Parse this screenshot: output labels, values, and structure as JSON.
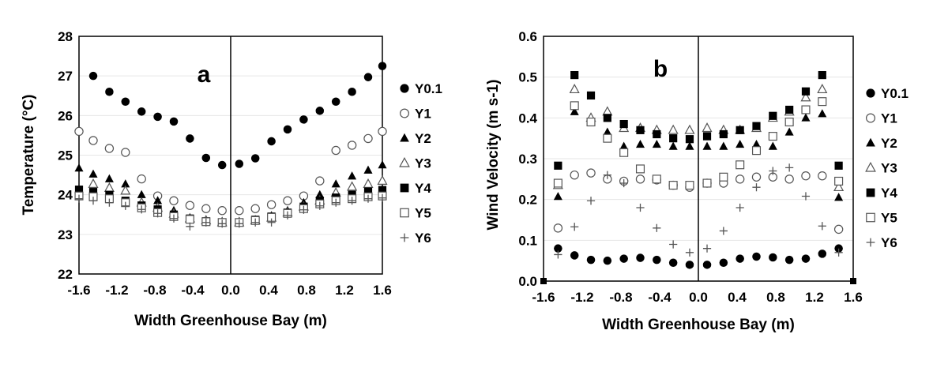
{
  "chart_data": [
    {
      "id": "a",
      "type": "scatter",
      "panel_label": "a",
      "xlabel": "Width Greenhouse Bay (m)",
      "ylabel": "Temperature (°C)",
      "xlim": [
        -1.6,
        1.6
      ],
      "ylim": [
        22,
        28
      ],
      "x_ticks": [
        -1.6,
        -1.2,
        -0.8,
        -0.4,
        0.0,
        0.4,
        0.8,
        1.2,
        1.6
      ],
      "x_tick_labels": [
        "-1.6",
        "-1.2",
        "-0.8",
        "-0.4",
        "0.0",
        "0.4",
        "0.8",
        "1.2",
        "1.6"
      ],
      "y_ticks": [
        22,
        23,
        24,
        25,
        26,
        27,
        28
      ],
      "y_tick_labels": [
        "22",
        "23",
        "24",
        "25",
        "26",
        "27",
        "28"
      ],
      "legend_position": "right",
      "series": [
        {
          "name": "Y0.1",
          "marker": "filled-circle",
          "x": [
            -1.45,
            -1.28,
            -1.11,
            -0.94,
            -0.77,
            -0.6,
            -0.43,
            -0.26,
            -0.09,
            0.09,
            0.26,
            0.43,
            0.6,
            0.77,
            0.94,
            1.11,
            1.28,
            1.45,
            1.6
          ],
          "y": [
            27.0,
            26.6,
            26.35,
            26.1,
            25.97,
            25.85,
            25.42,
            24.93,
            24.75,
            24.78,
            24.92,
            25.35,
            25.65,
            25.9,
            26.12,
            26.35,
            26.6,
            26.97,
            27.25
          ]
        },
        {
          "name": "Y1",
          "marker": "open-circle",
          "x": [
            -1.6,
            -1.45,
            -1.28,
            -1.11,
            -0.94,
            -0.77,
            -0.6,
            -0.43,
            -0.26,
            -0.09,
            0.09,
            0.26,
            0.43,
            0.6,
            0.77,
            0.94,
            1.11,
            1.28,
            1.45,
            1.6
          ],
          "y": [
            25.6,
            25.37,
            25.17,
            25.07,
            24.4,
            23.97,
            23.85,
            23.73,
            23.65,
            23.6,
            23.6,
            23.65,
            23.75,
            23.85,
            23.97,
            24.35,
            25.12,
            25.25,
            25.42,
            25.6
          ]
        },
        {
          "name": "Y2",
          "marker": "filled-triangle",
          "x": [
            -1.6,
            -1.45,
            -1.28,
            -1.11,
            -0.94,
            -0.77,
            -0.6,
            -0.43,
            -0.26,
            -0.09,
            0.09,
            0.26,
            0.43,
            0.6,
            0.77,
            0.94,
            1.11,
            1.28,
            1.45,
            1.6
          ],
          "y": [
            24.67,
            24.52,
            24.4,
            24.27,
            24.0,
            23.85,
            23.6,
            23.4,
            23.33,
            23.33,
            23.33,
            23.37,
            23.47,
            23.6,
            23.8,
            24.0,
            24.27,
            24.47,
            24.62,
            24.75
          ]
        },
        {
          "name": "Y3",
          "marker": "open-triangle",
          "x": [
            -1.45,
            -1.28,
            -1.11,
            -0.94,
            -0.77,
            -0.6,
            -0.43,
            -0.26,
            -0.09,
            0.09,
            0.26,
            0.43,
            0.6,
            0.77,
            0.94,
            1.11,
            1.28,
            1.45,
            1.6
          ],
          "y": [
            24.27,
            24.17,
            24.1,
            23.8,
            23.67,
            23.52,
            23.4,
            23.35,
            23.3,
            23.3,
            23.35,
            23.42,
            23.55,
            23.7,
            23.85,
            24.05,
            24.2,
            24.27,
            24.35
          ]
        },
        {
          "name": "Y4",
          "marker": "filled-square",
          "x": [
            -1.6,
            -1.45,
            -1.28,
            -1.11,
            -0.94,
            -0.77,
            -0.6,
            -0.43,
            -0.26,
            -0.09,
            0.09,
            0.26,
            0.43,
            0.6,
            0.77,
            0.94,
            1.11,
            1.28,
            1.45,
            1.6
          ],
          "y": [
            24.13,
            24.07,
            24.0,
            23.85,
            23.73,
            23.63,
            23.5,
            23.4,
            23.33,
            23.3,
            23.3,
            23.37,
            23.45,
            23.55,
            23.7,
            23.85,
            23.93,
            24.0,
            24.08,
            24.12
          ]
        },
        {
          "name": "Y5",
          "marker": "open-square",
          "x": [
            -1.6,
            -1.45,
            -1.28,
            -1.11,
            -0.94,
            -0.77,
            -0.6,
            -0.43,
            -0.26,
            -0.09,
            0.09,
            0.26,
            0.43,
            0.6,
            0.77,
            0.94,
            1.11,
            1.28,
            1.45,
            1.6
          ],
          "y": [
            23.97,
            23.95,
            23.9,
            23.8,
            23.67,
            23.55,
            23.45,
            23.38,
            23.32,
            23.3,
            23.3,
            23.35,
            23.43,
            23.53,
            23.65,
            23.77,
            23.85,
            23.9,
            23.95,
            23.97
          ]
        },
        {
          "name": "Y6",
          "marker": "plus",
          "x": [
            -1.6,
            -1.45,
            -1.28,
            -1.11,
            -0.94,
            -0.77,
            -0.6,
            -0.43,
            -0.26,
            -0.09,
            0.09,
            0.26,
            0.43,
            0.6,
            0.77,
            0.94,
            1.11,
            1.28,
            1.45,
            1.6
          ],
          "y": [
            23.9,
            23.85,
            23.8,
            23.72,
            23.63,
            23.53,
            23.4,
            23.2,
            23.3,
            23.27,
            23.27,
            23.3,
            23.3,
            23.48,
            23.62,
            23.72,
            23.8,
            23.85,
            23.9,
            23.92
          ]
        }
      ]
    },
    {
      "id": "b",
      "type": "scatter",
      "panel_label": "b",
      "xlabel": "Width Greenhouse Bay (m)",
      "ylabel": "Wind Velocity (m s-1)",
      "xlim": [
        -1.6,
        1.6
      ],
      "ylim": [
        0.0,
        0.6
      ],
      "x_ticks": [
        -1.6,
        -1.2,
        -0.8,
        -0.4,
        0.0,
        0.4,
        0.8,
        1.2,
        1.6
      ],
      "x_tick_labels": [
        "-1.6",
        "-1.2",
        "-0.8",
        "-0.4",
        "0.0",
        "0.4",
        "0.8",
        "1.2",
        "1.6"
      ],
      "y_ticks": [
        0.0,
        0.1,
        0.2,
        0.3,
        0.4,
        0.5,
        0.6
      ],
      "y_tick_labels": [
        "0.0",
        "0.1",
        "0.2",
        "0.3",
        "0.4",
        "0.5",
        "0.6"
      ],
      "legend_position": "right",
      "series": [
        {
          "name": "Y0.1",
          "marker": "filled-circle",
          "x": [
            -1.45,
            -1.28,
            -1.11,
            -0.94,
            -0.77,
            -0.6,
            -0.43,
            -0.26,
            -0.09,
            0.09,
            0.26,
            0.43,
            0.6,
            0.77,
            0.94,
            1.11,
            1.28,
            1.45
          ],
          "y": [
            0.08,
            0.063,
            0.052,
            0.05,
            0.055,
            0.057,
            0.052,
            0.045,
            0.04,
            0.04,
            0.045,
            0.055,
            0.06,
            0.058,
            0.052,
            0.055,
            0.067,
            0.08
          ]
        },
        {
          "name": "Y1",
          "marker": "open-circle",
          "x": [
            -1.45,
            -1.28,
            -1.11,
            -0.94,
            -0.77,
            -0.6,
            -0.43,
            -0.26,
            -0.09,
            0.09,
            0.26,
            0.43,
            0.6,
            0.77,
            0.94,
            1.11,
            1.28,
            1.45
          ],
          "y": [
            0.13,
            0.26,
            0.265,
            0.25,
            0.245,
            0.25,
            0.248,
            0.235,
            0.23,
            0.24,
            0.24,
            0.25,
            0.255,
            0.255,
            0.25,
            0.258,
            0.258,
            0.127
          ]
        },
        {
          "name": "Y2",
          "marker": "filled-triangle",
          "x": [
            -1.45,
            -1.28,
            -1.11,
            -0.94,
            -0.77,
            -0.6,
            -0.43,
            -0.26,
            -0.09,
            0.09,
            0.26,
            0.43,
            0.6,
            0.77,
            0.94,
            1.11,
            1.28,
            1.45
          ],
          "y": [
            0.207,
            0.415,
            0.395,
            0.365,
            0.33,
            0.335,
            0.335,
            0.33,
            0.33,
            0.33,
            0.33,
            0.335,
            0.335,
            0.33,
            0.365,
            0.4,
            0.41,
            0.205
          ]
        },
        {
          "name": "Y3",
          "marker": "open-triangle",
          "x": [
            -1.45,
            -1.28,
            -1.11,
            -0.94,
            -0.77,
            -0.6,
            -0.43,
            -0.26,
            -0.09,
            0.09,
            0.26,
            0.43,
            0.6,
            0.77,
            0.94,
            1.11,
            1.28,
            1.45
          ],
          "y": [
            0.235,
            0.47,
            0.4,
            0.415,
            0.375,
            0.375,
            0.37,
            0.37,
            0.37,
            0.375,
            0.37,
            0.37,
            0.375,
            0.4,
            0.415,
            0.45,
            0.47,
            0.23
          ]
        },
        {
          "name": "Y4",
          "marker": "filled-square",
          "x": [
            -1.45,
            -1.28,
            -1.11,
            -0.94,
            -0.77,
            -0.6,
            -0.43,
            -0.26,
            -0.09,
            0.09,
            0.26,
            0.43,
            0.6,
            0.77,
            0.94,
            1.11,
            1.28,
            1.45
          ],
          "y": [
            0.283,
            0.505,
            0.455,
            0.4,
            0.385,
            0.37,
            0.36,
            0.35,
            0.348,
            0.355,
            0.36,
            0.37,
            0.38,
            0.405,
            0.42,
            0.465,
            0.505,
            0.283
          ]
        },
        {
          "name": "Y5",
          "marker": "open-square",
          "x": [
            -1.45,
            -1.28,
            -1.11,
            -0.94,
            -0.77,
            -0.6,
            -0.43,
            -0.26,
            -0.09,
            0.09,
            0.26,
            0.43,
            0.6,
            0.77,
            0.94,
            1.11,
            1.28,
            1.45
          ],
          "y": [
            0.24,
            0.43,
            0.39,
            0.35,
            0.315,
            0.275,
            0.25,
            0.235,
            0.235,
            0.24,
            0.255,
            0.285,
            0.32,
            0.355,
            0.39,
            0.42,
            0.44,
            0.245
          ]
        },
        {
          "name": "Y6",
          "marker": "plus",
          "x": [
            -1.45,
            -1.28,
            -1.11,
            -0.94,
            -0.77,
            -0.6,
            -0.43,
            -0.26,
            -0.09,
            0.09,
            0.26,
            0.43,
            0.6,
            0.77,
            0.94,
            1.11,
            1.28,
            1.45
          ],
          "y": [
            0.065,
            0.133,
            0.197,
            0.26,
            0.24,
            0.18,
            0.13,
            0.09,
            0.07,
            0.08,
            0.123,
            0.18,
            0.23,
            0.27,
            0.278,
            0.208,
            0.135,
            0.07
          ]
        }
      ]
    }
  ]
}
